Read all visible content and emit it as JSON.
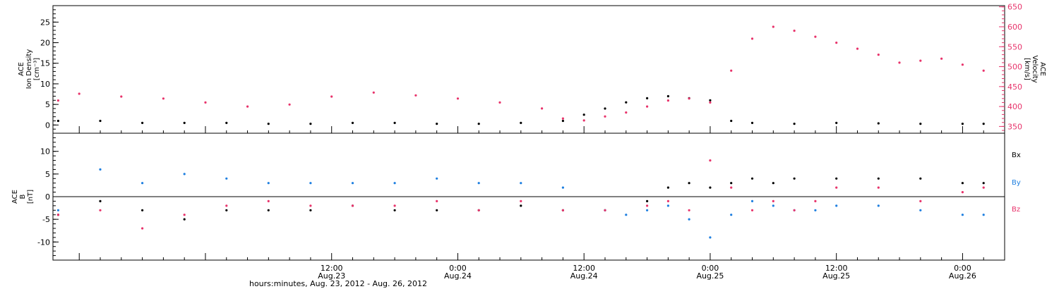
{
  "colors": {
    "black": "#000000",
    "pink": "#e8336b",
    "blue": "#1e7fe0"
  },
  "panels": {
    "top": {
      "left_axis_label": [
        "ACE",
        "Ion Density",
        "[cm⁻³]"
      ],
      "right_axis_label": [
        "ACE",
        "Velocity",
        "[km/s]"
      ]
    },
    "bottom": {
      "axis_label": [
        "ACE",
        "B",
        "[nT]"
      ],
      "legend": [
        "Bx",
        "By",
        "Bz"
      ]
    }
  },
  "x_axis_title": "hours:minutes, Aug. 23, 2012 - Aug. 26, 2012",
  "chart_data": [
    {
      "type": "scatter",
      "x_range_hours": [
        -26.5,
        64
      ],
      "x_ticks": [
        {
          "hour": 0,
          "label": "12:00",
          "sub": "Aug.23"
        },
        {
          "hour": 12,
          "label": "0:00",
          "sub": "Aug.24"
        },
        {
          "hour": 24,
          "label": "12:00",
          "sub": "Aug.24"
        },
        {
          "hour": 36,
          "label": "0:00",
          "sub": "Aug.25"
        },
        {
          "hour": 48,
          "label": "12:00",
          "sub": "Aug.25"
        },
        {
          "hour": 60,
          "label": "0:00",
          "sub": "Aug.26"
        }
      ],
      "left_axis": {
        "label": "Ion Density [cm-3]",
        "range": [
          -2,
          29
        ],
        "ticks": [
          0,
          5,
          10,
          15,
          20,
          25
        ]
      },
      "right_axis": {
        "label": "Velocity [km/s]",
        "range": [
          333,
          653
        ],
        "ticks": [
          350,
          400,
          450,
          500,
          550,
          600,
          650
        ]
      },
      "series": [
        {
          "name": "Ion Density",
          "axis": "left",
          "color": "#000000",
          "x": [
            -26,
            -22,
            -18,
            -14,
            -10,
            -6,
            -2,
            2,
            6,
            10,
            14,
            18,
            22,
            24,
            26,
            28,
            30,
            32,
            34,
            36,
            38,
            40,
            44,
            48,
            52,
            56,
            60,
            62
          ],
          "y": [
            1,
            1,
            0.5,
            0.5,
            0.5,
            0.3,
            0.3,
            0.5,
            0.5,
            0.3,
            0.3,
            0.5,
            1,
            2.5,
            4,
            5.5,
            6.5,
            7,
            6.5,
            6,
            1,
            0.5,
            0.3,
            0.5,
            0.4,
            0.3,
            0.3,
            0.3
          ]
        },
        {
          "name": "Velocity",
          "axis": "right",
          "color": "#e8336b",
          "x": [
            -26,
            -24,
            -20,
            -16,
            -12,
            -8,
            -4,
            0,
            4,
            8,
            12,
            16,
            20,
            22,
            24,
            26,
            28,
            30,
            32,
            34,
            36,
            38,
            40,
            42,
            44,
            46,
            48,
            50,
            52,
            54,
            56,
            58,
            60,
            62
          ],
          "y": [
            415,
            432,
            425,
            420,
            410,
            400,
            405,
            425,
            435,
            428,
            420,
            410,
            395,
            370,
            365,
            375,
            385,
            400,
            415,
            420,
            410,
            490,
            570,
            600,
            590,
            575,
            560,
            545,
            530,
            510,
            515,
            520,
            505,
            490
          ]
        }
      ]
    },
    {
      "type": "scatter",
      "x_range_hours": [
        -26.5,
        64
      ],
      "y_axis": {
        "label": "B [nT]",
        "range": [
          -14,
          14
        ],
        "ticks": [
          -10,
          -5,
          0,
          5,
          10
        ]
      },
      "series": [
        {
          "name": "Bx",
          "color": "#000000",
          "x": [
            -26,
            -22,
            -18,
            -14,
            -10,
            -6,
            -2,
            2,
            6,
            10,
            14,
            18,
            22,
            26,
            30,
            32,
            34,
            36,
            38,
            40,
            42,
            44,
            48,
            52,
            56,
            60,
            62
          ],
          "y": [
            -4,
            -1,
            -3,
            -5,
            -3,
            -3,
            -3,
            -2,
            -3,
            -3,
            -3,
            -2,
            -3,
            -3,
            -1,
            2,
            3,
            2,
            3,
            4,
            3,
            4,
            4,
            4,
            4,
            3,
            3
          ]
        },
        {
          "name": "By",
          "color": "#1e7fe0",
          "x": [
            -26,
            -22,
            -18,
            -14,
            -10,
            -6,
            -2,
            2,
            6,
            10,
            14,
            18,
            22,
            26,
            28,
            30,
            32,
            34,
            36,
            38,
            40,
            42,
            44,
            46,
            48,
            52,
            56,
            60,
            62
          ],
          "y": [
            -3,
            6,
            3,
            5,
            4,
            3,
            3,
            3,
            3,
            4,
            3,
            3,
            2,
            -3,
            -4,
            -3,
            -2,
            -5,
            -9,
            -4,
            -1,
            -2,
            -3,
            -3,
            -2,
            -2,
            -3,
            -4,
            -4
          ]
        },
        {
          "name": "Bz",
          "color": "#e8336b",
          "x": [
            -26,
            -22,
            -18,
            -14,
            -10,
            -6,
            -2,
            2,
            6,
            10,
            14,
            18,
            22,
            26,
            30,
            32,
            34,
            36,
            38,
            40,
            42,
            44,
            46,
            48,
            52,
            56,
            60,
            62
          ],
          "y": [
            -4,
            -3,
            -7,
            -4,
            -2,
            -1,
            -2,
            -2,
            -2,
            -1,
            -3,
            -1,
            -3,
            -3,
            -2,
            -1,
            -3,
            8,
            2,
            -3,
            -1,
            -3,
            -1,
            2,
            2,
            -1,
            1,
            2
          ]
        }
      ]
    }
  ]
}
